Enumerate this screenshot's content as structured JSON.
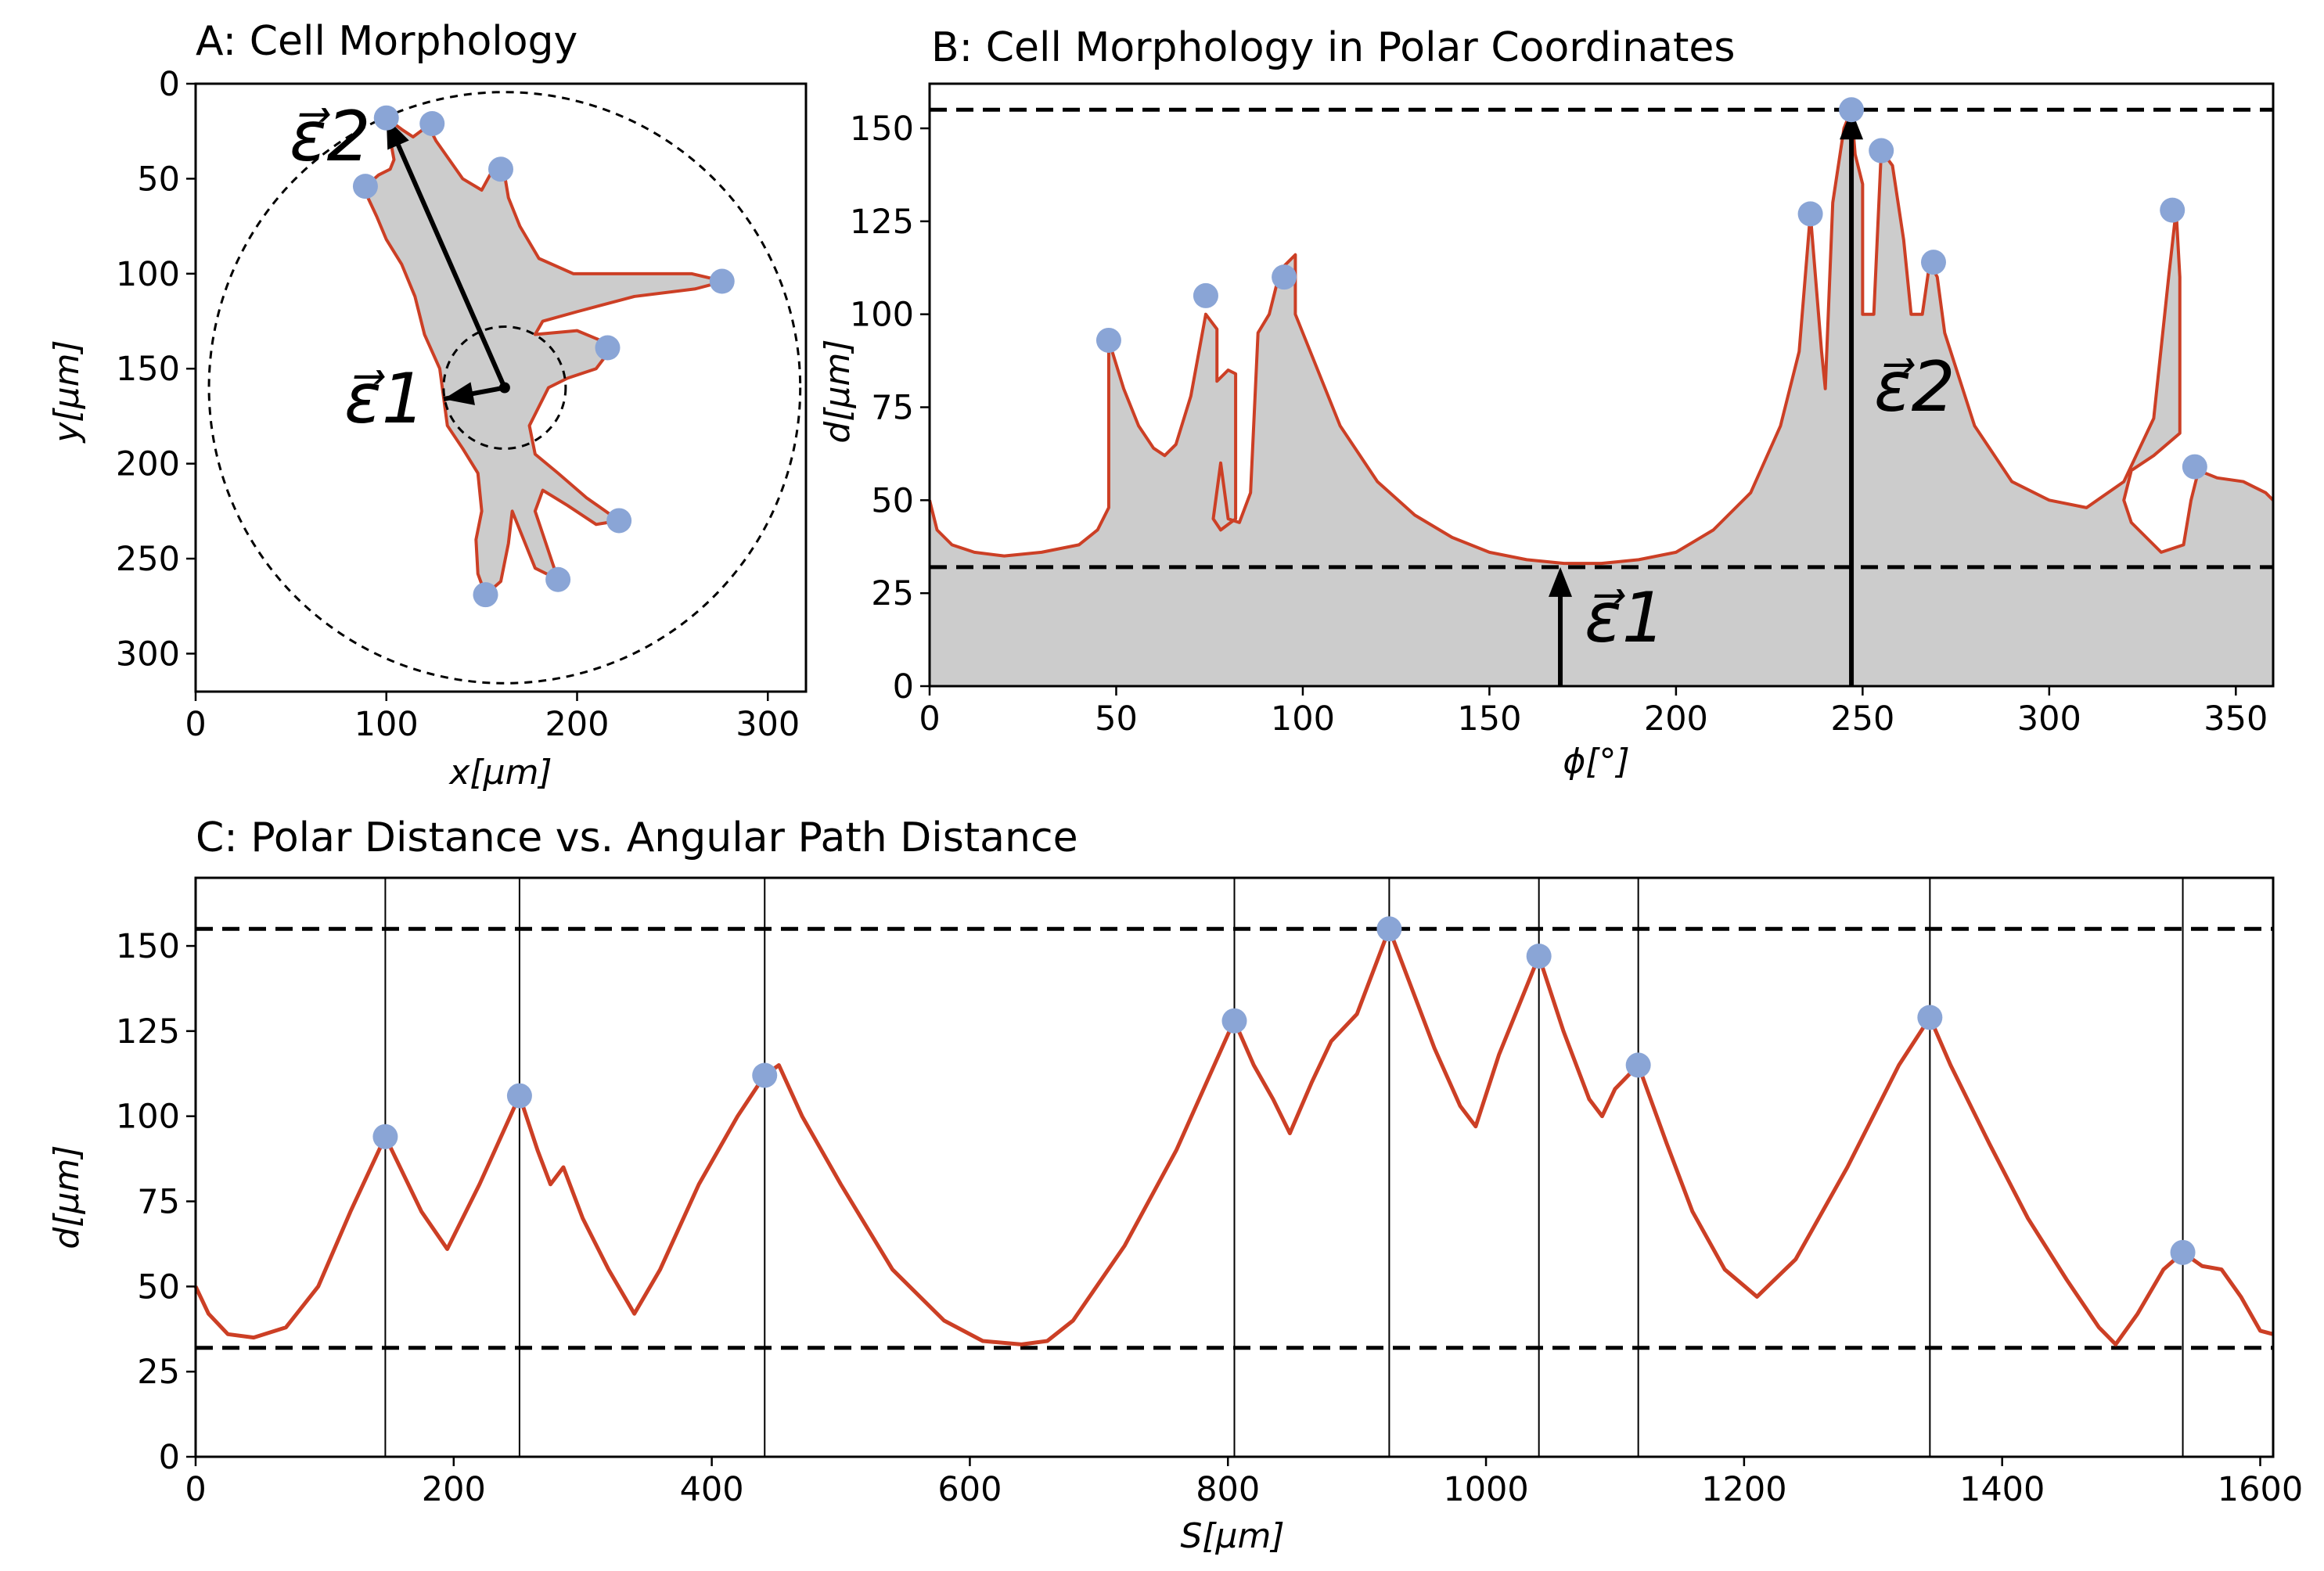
{
  "colors": {
    "outline": "#cc3f25",
    "fill": "#cccccc",
    "marker": "#8aa5d6",
    "axis": "#000000",
    "dashed": "#000000"
  },
  "chart_data": [
    {
      "id": "A",
      "type": "scatter",
      "title": "A: Cell Morphology",
      "xlabel": "x[μm]",
      "ylabel": "y[μm]",
      "xlim": [
        0,
        320
      ],
      "ylim": [
        320,
        0
      ],
      "xticks": [
        "0",
        "100",
        "200",
        "300"
      ],
      "yticks": [
        "0",
        "50",
        "100",
        "150",
        "200",
        "250",
        "300"
      ],
      "grid": false,
      "center": {
        "x": 162,
        "y": 160
      },
      "inner_circle_radius": 32,
      "outer_circle_radius": 155,
      "tips": [
        {
          "x": 100,
          "y": 18
        },
        {
          "x": 124,
          "y": 21
        },
        {
          "x": 160,
          "y": 45
        },
        {
          "x": 89,
          "y": 54
        },
        {
          "x": 276,
          "y": 104
        },
        {
          "x": 216,
          "y": 139
        },
        {
          "x": 222,
          "y": 230
        },
        {
          "x": 190,
          "y": 261
        },
        {
          "x": 152,
          "y": 269
        }
      ],
      "outline": [
        [
          88,
          55
        ],
        [
          96,
          48
        ],
        [
          102,
          45
        ],
        [
          104,
          40
        ],
        [
          100,
          18
        ],
        [
          108,
          24
        ],
        [
          114,
          28
        ],
        [
          122,
          22
        ],
        [
          126,
          30
        ],
        [
          140,
          50
        ],
        [
          150,
          56
        ],
        [
          156,
          45
        ],
        [
          162,
          48
        ],
        [
          164,
          60
        ],
        [
          170,
          75
        ],
        [
          180,
          92
        ],
        [
          198,
          100
        ],
        [
          235,
          100
        ],
        [
          260,
          100
        ],
        [
          277,
          104
        ],
        [
          262,
          108
        ],
        [
          230,
          112
        ],
        [
          200,
          120
        ],
        [
          182,
          125
        ],
        [
          178,
          132
        ],
        [
          200,
          130
        ],
        [
          212,
          135
        ],
        [
          216,
          142
        ],
        [
          210,
          150
        ],
        [
          195,
          155
        ],
        [
          185,
          160
        ],
        [
          180,
          170
        ],
        [
          175,
          180
        ],
        [
          178,
          195
        ],
        [
          190,
          205
        ],
        [
          205,
          218
        ],
        [
          222,
          230
        ],
        [
          210,
          232
        ],
        [
          195,
          222
        ],
        [
          182,
          214
        ],
        [
          178,
          225
        ],
        [
          183,
          240
        ],
        [
          190,
          261
        ],
        [
          178,
          255
        ],
        [
          172,
          240
        ],
        [
          166,
          225
        ],
        [
          164,
          242
        ],
        [
          160,
          262
        ],
        [
          152,
          269
        ],
        [
          148,
          258
        ],
        [
          147,
          240
        ],
        [
          150,
          225
        ],
        [
          148,
          205
        ],
        [
          140,
          192
        ],
        [
          132,
          180
        ],
        [
          130,
          165
        ],
        [
          128,
          150
        ],
        [
          120,
          132
        ],
        [
          115,
          112
        ],
        [
          108,
          95
        ],
        [
          100,
          82
        ],
        [
          95,
          70
        ]
      ],
      "vectors": [
        {
          "label": "ε⃗1",
          "from": {
            "x": 162,
            "y": 160
          },
          "to": {
            "x": 130,
            "y": 166
          }
        },
        {
          "label": "ε⃗2",
          "from": {
            "x": 162,
            "y": 160
          },
          "to": {
            "x": 100,
            "y": 18
          }
        }
      ],
      "vector_labels": [
        "ε⃗1",
        "ε⃗2"
      ]
    },
    {
      "id": "B",
      "type": "area",
      "title": "B: Cell Morphology in Polar Coordinates",
      "xlabel": "ϕ[°]",
      "ylabel": "d[μm]",
      "xlim": [
        0,
        360
      ],
      "ylim": [
        0,
        162
      ],
      "xticks": [
        "0",
        "50",
        "100",
        "150",
        "200",
        "250",
        "300",
        "350"
      ],
      "yticks": [
        "0",
        "25",
        "50",
        "75",
        "100",
        "125",
        "150"
      ],
      "grid": false,
      "hlines": [
        32,
        155
      ],
      "outline": [
        [
          0,
          50
        ],
        [
          2,
          42
        ],
        [
          6,
          38
        ],
        [
          12,
          36
        ],
        [
          20,
          35
        ],
        [
          30,
          36
        ],
        [
          40,
          38
        ],
        [
          45,
          42
        ],
        [
          48,
          48
        ],
        [
          48,
          93
        ],
        [
          52,
          80
        ],
        [
          56,
          70
        ],
        [
          60,
          64
        ],
        [
          63,
          62
        ],
        [
          66,
          65
        ],
        [
          70,
          78
        ],
        [
          74,
          100
        ],
        [
          77,
          96
        ],
        [
          77,
          82
        ],
        [
          80,
          85
        ],
        [
          82,
          84
        ],
        [
          82,
          45
        ],
        [
          78,
          42
        ],
        [
          76,
          45
        ],
        [
          78,
          60
        ],
        [
          80,
          45
        ],
        [
          83,
          44
        ],
        [
          86,
          52
        ],
        [
          88,
          95
        ],
        [
          91,
          100
        ],
        [
          94,
          112
        ],
        [
          98,
          116
        ],
        [
          98,
          100
        ],
        [
          102,
          90
        ],
        [
          110,
          70
        ],
        [
          120,
          55
        ],
        [
          130,
          46
        ],
        [
          140,
          40
        ],
        [
          150,
          36
        ],
        [
          160,
          34
        ],
        [
          170,
          33
        ],
        [
          180,
          33
        ],
        [
          190,
          34
        ],
        [
          200,
          36
        ],
        [
          210,
          42
        ],
        [
          220,
          52
        ],
        [
          228,
          70
        ],
        [
          233,
          90
        ],
        [
          236,
          127
        ],
        [
          239,
          90
        ],
        [
          240,
          80
        ],
        [
          242,
          130
        ],
        [
          245,
          150
        ],
        [
          247,
          155
        ],
        [
          248,
          143
        ],
        [
          250,
          135
        ],
        [
          250,
          100
        ],
        [
          253,
          100
        ],
        [
          255,
          144
        ],
        [
          258,
          140
        ],
        [
          261,
          120
        ],
        [
          263,
          100
        ],
        [
          266,
          100
        ],
        [
          268,
          114
        ],
        [
          270,
          110
        ],
        [
          272,
          95
        ],
        [
          280,
          70
        ],
        [
          290,
          55
        ],
        [
          300,
          50
        ],
        [
          310,
          48
        ],
        [
          320,
          55
        ],
        [
          328,
          72
        ],
        [
          332,
          110
        ],
        [
          334,
          128
        ],
        [
          335,
          110
        ],
        [
          335,
          68
        ],
        [
          328,
          62
        ],
        [
          322,
          58
        ],
        [
          320,
          50
        ],
        [
          322,
          44
        ],
        [
          330,
          36
        ],
        [
          336,
          38
        ],
        [
          338,
          50
        ],
        [
          340,
          58
        ],
        [
          345,
          56
        ],
        [
          352,
          55
        ],
        [
          358,
          52
        ],
        [
          360,
          50
        ]
      ],
      "tips": [
        {
          "x": 48,
          "y": 93
        },
        {
          "x": 74,
          "y": 105
        },
        {
          "x": 95,
          "y": 110
        },
        {
          "x": 236,
          "y": 127
        },
        {
          "x": 247,
          "y": 155
        },
        {
          "x": 255,
          "y": 144
        },
        {
          "x": 269,
          "y": 114
        },
        {
          "x": 333,
          "y": 128
        },
        {
          "x": 339,
          "y": 59
        }
      ],
      "vectors": [
        {
          "label": "ε⃗1",
          "x": 169,
          "from": 0,
          "to": 32
        },
        {
          "label": "ε⃗2",
          "x": 247,
          "from": 0,
          "to": 155
        }
      ],
      "vector_labels": [
        "ε⃗1",
        "ε⃗2"
      ]
    },
    {
      "id": "C",
      "type": "line",
      "title": "C: Polar Distance vs. Angular Path Distance",
      "xlabel": "S[μm]",
      "ylabel": "d[μm]",
      "xlim": [
        0,
        1610
      ],
      "ylim": [
        0,
        170
      ],
      "xticks": [
        "0",
        "200",
        "400",
        "600",
        "800",
        "1000",
        "1200",
        "1400",
        "1600"
      ],
      "yticks": [
        "0",
        "25",
        "50",
        "75",
        "100",
        "125",
        "150"
      ],
      "grid": false,
      "hlines": [
        32,
        155
      ],
      "vlines": [
        147,
        251,
        441,
        805,
        925,
        1041,
        1118,
        1344,
        1540
      ],
      "line": [
        [
          0,
          50
        ],
        [
          10,
          42
        ],
        [
          25,
          36
        ],
        [
          45,
          35
        ],
        [
          70,
          38
        ],
        [
          95,
          50
        ],
        [
          120,
          72
        ],
        [
          147,
          94
        ],
        [
          175,
          72
        ],
        [
          195,
          61
        ],
        [
          220,
          80
        ],
        [
          251,
          106
        ],
        [
          265,
          90
        ],
        [
          275,
          80
        ],
        [
          285,
          85
        ],
        [
          300,
          70
        ],
        [
          320,
          55
        ],
        [
          340,
          42
        ],
        [
          360,
          55
        ],
        [
          390,
          80
        ],
        [
          420,
          100
        ],
        [
          441,
          112
        ],
        [
          452,
          115
        ],
        [
          470,
          100
        ],
        [
          500,
          80
        ],
        [
          540,
          55
        ],
        [
          580,
          40
        ],
        [
          610,
          34
        ],
        [
          640,
          33
        ],
        [
          660,
          34
        ],
        [
          680,
          40
        ],
        [
          720,
          62
        ],
        [
          760,
          90
        ],
        [
          800,
          124
        ],
        [
          805,
          128
        ],
        [
          820,
          115
        ],
        [
          835,
          105
        ],
        [
          848,
          95
        ],
        [
          865,
          110
        ],
        [
          880,
          122
        ],
        [
          900,
          130
        ],
        [
          915,
          145
        ],
        [
          925,
          155
        ],
        [
          940,
          140
        ],
        [
          960,
          120
        ],
        [
          980,
          103
        ],
        [
          992,
          97
        ],
        [
          1010,
          118
        ],
        [
          1041,
          147
        ],
        [
          1060,
          125
        ],
        [
          1080,
          105
        ],
        [
          1090,
          100
        ],
        [
          1100,
          108
        ],
        [
          1118,
          115
        ],
        [
          1140,
          92
        ],
        [
          1160,
          72
        ],
        [
          1185,
          55
        ],
        [
          1210,
          47
        ],
        [
          1240,
          58
        ],
        [
          1280,
          85
        ],
        [
          1320,
          115
        ],
        [
          1344,
          129
        ],
        [
          1360,
          115
        ],
        [
          1390,
          92
        ],
        [
          1420,
          70
        ],
        [
          1450,
          52
        ],
        [
          1475,
          38
        ],
        [
          1488,
          33
        ],
        [
          1505,
          42
        ],
        [
          1525,
          55
        ],
        [
          1540,
          60
        ],
        [
          1555,
          56
        ],
        [
          1570,
          55
        ],
        [
          1585,
          47
        ],
        [
          1600,
          37
        ],
        [
          1610,
          36
        ]
      ],
      "tips": [
        {
          "x": 147,
          "y": 94
        },
        {
          "x": 251,
          "y": 106
        },
        {
          "x": 441,
          "y": 112
        },
        {
          "x": 805,
          "y": 128
        },
        {
          "x": 925,
          "y": 155
        },
        {
          "x": 1041,
          "y": 147
        },
        {
          "x": 1118,
          "y": 115
        },
        {
          "x": 1344,
          "y": 129
        },
        {
          "x": 1540,
          "y": 60
        }
      ]
    }
  ]
}
